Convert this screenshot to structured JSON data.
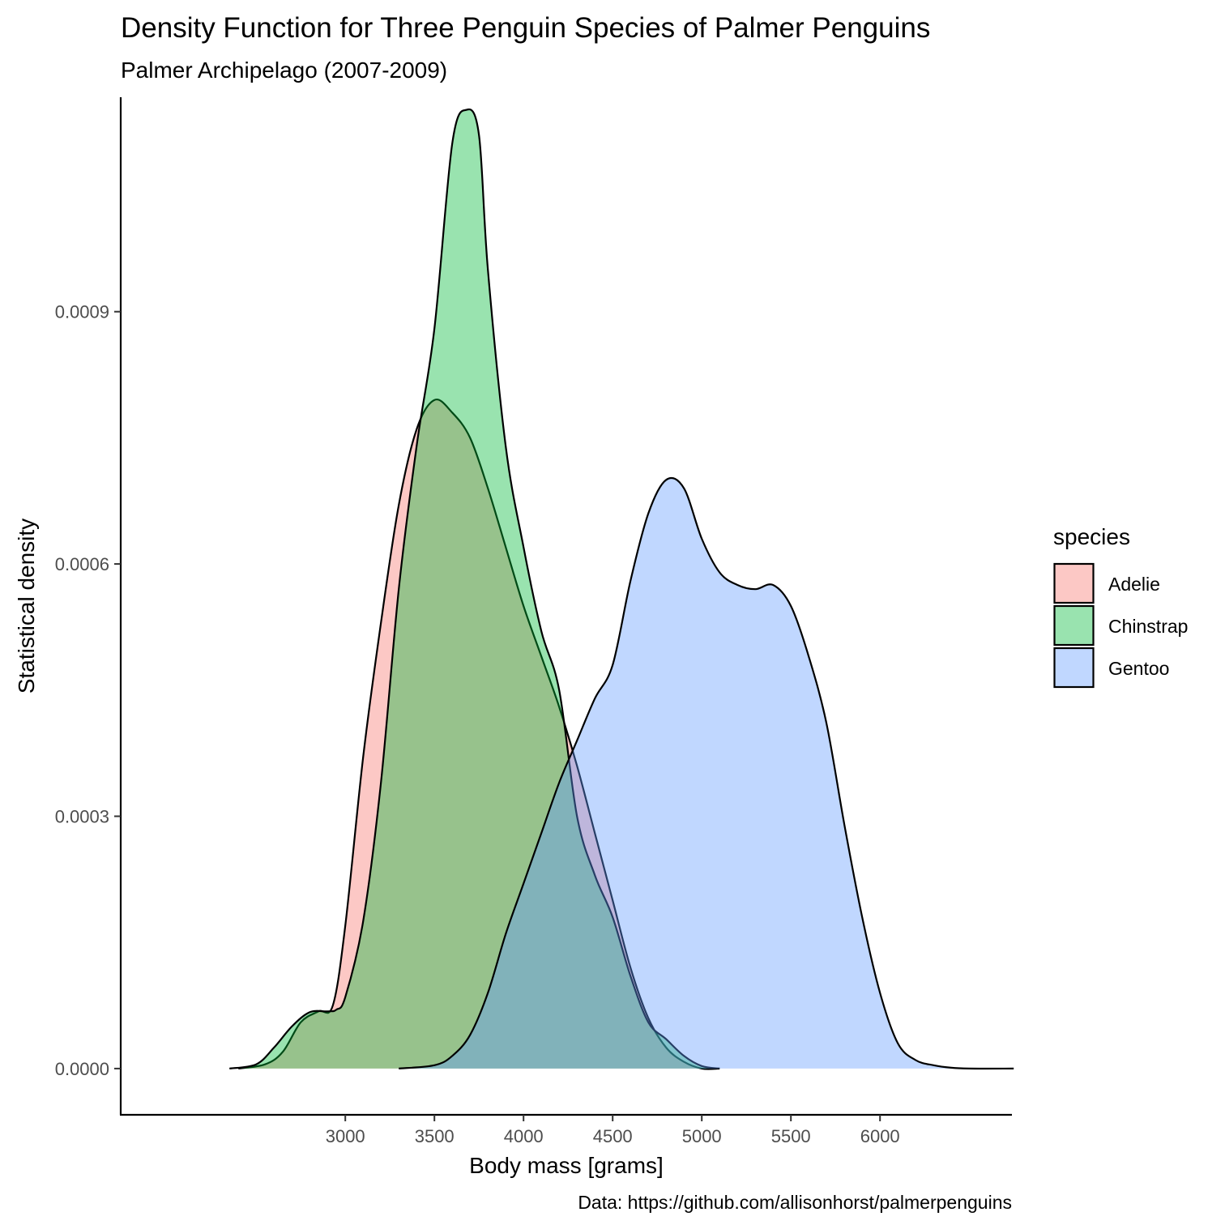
{
  "chart_data": {
    "type": "area",
    "title": "Density Function for Three Penguin Species of Palmer Penguins",
    "subtitle": "Palmer Archipelago (2007-2009)",
    "xlabel": "Body mass [grams]",
    "ylabel": "Statistical density",
    "caption": "Data: https://github.com/allisonhorst/palmerpenguins",
    "xlim": [
      1740,
      6740
    ],
    "ylim": [
      -5.5e-05,
      0.001155
    ],
    "x_ticks": [
      3000,
      3500,
      4000,
      4500,
      5000,
      5500,
      6000
    ],
    "x_tick_labels": [
      "3000",
      "3500",
      "4000",
      "4500",
      "5000",
      "5500",
      "6000"
    ],
    "y_ticks": [
      0,
      0.0003,
      0.0006,
      0.0009
    ],
    "y_tick_labels": [
      "0.0000",
      "0.0003",
      "0.0006",
      "0.0009"
    ],
    "grid": false,
    "legend": {
      "title": "species",
      "position": "right"
    },
    "series": [
      {
        "name": "Adelie",
        "color": "#F8766D",
        "points": [
          [
            2400,
            0
          ],
          [
            2550,
            5e-06
          ],
          [
            2650,
            2e-05
          ],
          [
            2750,
            5.5e-05
          ],
          [
            2850,
            6.8e-05
          ],
          [
            2930,
            7.5e-05
          ],
          [
            3000,
            0.00017
          ],
          [
            3100,
            0.00037
          ],
          [
            3200,
            0.00053
          ],
          [
            3300,
            0.00067
          ],
          [
            3400,
            0.00076
          ],
          [
            3500,
            0.000795
          ],
          [
            3600,
            0.00078
          ],
          [
            3700,
            0.00075
          ],
          [
            3800,
            0.00069
          ],
          [
            3900,
            0.00062
          ],
          [
            4000,
            0.00055
          ],
          [
            4100,
            0.00049
          ],
          [
            4200,
            0.00043
          ],
          [
            4300,
            0.00036
          ],
          [
            4400,
            0.00028
          ],
          [
            4500,
            0.0002
          ],
          [
            4600,
            0.00012
          ],
          [
            4700,
            6e-05
          ],
          [
            4800,
            2.5e-05
          ],
          [
            4900,
            8e-06
          ],
          [
            5000,
            0
          ],
          [
            5100,
            0
          ]
        ]
      },
      {
        "name": "Chinstrap",
        "color": "#00BA38",
        "points": [
          [
            2350,
            0
          ],
          [
            2500,
            5e-06
          ],
          [
            2600,
            2.5e-05
          ],
          [
            2700,
            5e-05
          ],
          [
            2800,
            6.7e-05
          ],
          [
            2900,
            6.8e-05
          ],
          [
            2950,
            7e-05
          ],
          [
            3000,
            8.5e-05
          ],
          [
            3100,
            0.000175
          ],
          [
            3200,
            0.00034
          ],
          [
            3300,
            0.00057
          ],
          [
            3400,
            0.00074
          ],
          [
            3500,
            0.00088
          ],
          [
            3600,
            0.0011
          ],
          [
            3680,
            0.00114
          ],
          [
            3750,
            0.00111
          ],
          [
            3800,
            0.00095
          ],
          [
            3900,
            0.00074
          ],
          [
            4000,
            0.00062
          ],
          [
            4100,
            0.00052
          ],
          [
            4200,
            0.00045
          ],
          [
            4300,
            0.0003
          ],
          [
            4400,
            0.00023
          ],
          [
            4500,
            0.00018
          ],
          [
            4600,
            0.00011
          ],
          [
            4700,
            5.5e-05
          ],
          [
            4800,
            3.5e-05
          ],
          [
            4900,
            1.5e-05
          ],
          [
            5000,
            3e-06
          ],
          [
            5100,
            0
          ]
        ]
      },
      {
        "name": "Gentoo",
        "color": "#619CFF",
        "points": [
          [
            3300,
            0
          ],
          [
            3500,
            4e-06
          ],
          [
            3600,
            1.5e-05
          ],
          [
            3700,
            4e-05
          ],
          [
            3800,
            9e-05
          ],
          [
            3900,
            0.00016
          ],
          [
            4000,
            0.00022
          ],
          [
            4100,
            0.00028
          ],
          [
            4200,
            0.00034
          ],
          [
            4300,
            0.00039
          ],
          [
            4400,
            0.00044
          ],
          [
            4500,
            0.00048
          ],
          [
            4600,
            0.00058
          ],
          [
            4700,
            0.00066
          ],
          [
            4800,
            0.0007
          ],
          [
            4900,
            0.00069
          ],
          [
            5000,
            0.00063
          ],
          [
            5100,
            0.00059
          ],
          [
            5200,
            0.000575
          ],
          [
            5300,
            0.00057
          ],
          [
            5400,
            0.000575
          ],
          [
            5500,
            0.00055
          ],
          [
            5600,
            0.00049
          ],
          [
            5700,
            0.00041
          ],
          [
            5800,
            0.00029
          ],
          [
            5900,
            0.00018
          ],
          [
            6000,
            9e-05
          ],
          [
            6100,
            3e-05
          ],
          [
            6200,
            1e-05
          ],
          [
            6300,
            4e-06
          ],
          [
            6400,
            1e-06
          ],
          [
            6500,
            0
          ],
          [
            6750,
            0
          ]
        ]
      }
    ]
  }
}
